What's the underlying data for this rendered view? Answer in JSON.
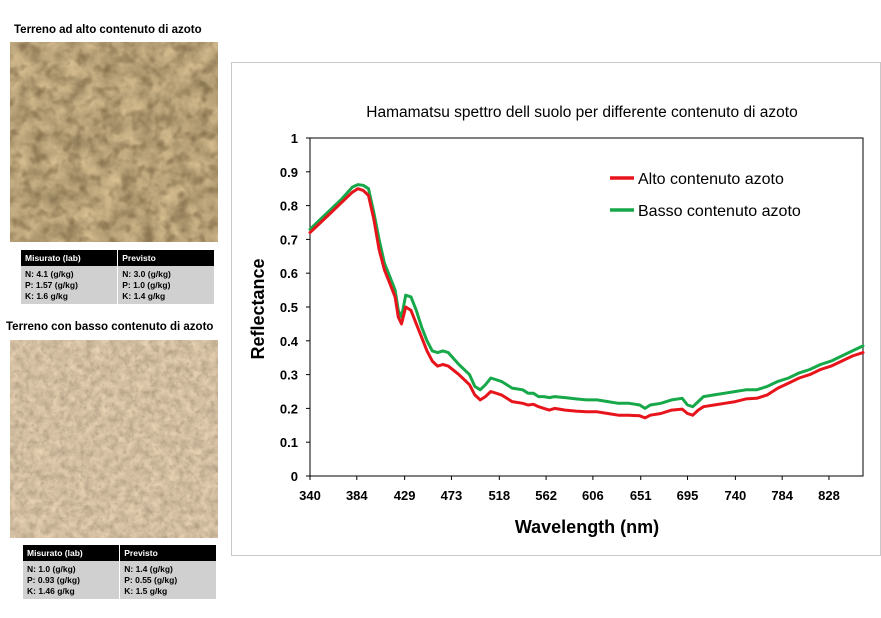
{
  "panels": {
    "high": {
      "title": "Terreno ad alto contenuto di azoto",
      "table": {
        "headers": [
          "Misurato (lab)",
          "Previsto"
        ],
        "measured": [
          "N: 4.1 (g/kg)",
          "P: 1.57 (g/kg)",
          "K: 1.6 g/kg"
        ],
        "predicted": [
          "N: 3.0 (g/kg)",
          "P: 1.0 (g/kg)",
          "K: 1.4 g/kg"
        ]
      }
    },
    "low": {
      "title": "Terreno con basso contenuto di azoto",
      "table": {
        "headers": [
          "Misurato (lab)",
          "Previsto"
        ],
        "measured": [
          "N: 1.0 (g/kg)",
          "P: 0.93 (g/kg)",
          "K: 1.46 g/kg"
        ],
        "predicted": [
          "N: 1.4 (g/kg)",
          "P: 0.55 (g/kg)",
          "K: 1.5 g/kg"
        ]
      }
    }
  },
  "chart_data": {
    "type": "line",
    "title": "Hamamatsu spettro dell suolo per differente contenuto di azoto",
    "xlabel": "Wavelength (nm)",
    "ylabel": "Reflectance",
    "xlim": [
      340,
      860
    ],
    "ylim": [
      0,
      1
    ],
    "x_ticks": [
      340,
      384,
      429,
      473,
      518,
      562,
      606,
      651,
      695,
      740,
      784,
      828
    ],
    "y_ticks": [
      0,
      0.1,
      0.2,
      0.3,
      0.4,
      0.5,
      0.6,
      0.7,
      0.8,
      0.9,
      1
    ],
    "y_tick_labels": [
      "0",
      "0.1",
      "0.2",
      "0.3",
      "0.4",
      "0.5",
      "0.6",
      "0.7",
      "0.8",
      "0.9",
      "1"
    ],
    "grid": false,
    "legend_position": "top-right",
    "series": [
      {
        "name": "Alto contenuto azoto",
        "color": "#e8141c",
        "x": [
          340,
          350,
          360,
          370,
          380,
          385,
          390,
          395,
          400,
          405,
          410,
          415,
          420,
          423,
          426,
          430,
          435,
          440,
          445,
          450,
          455,
          460,
          465,
          470,
          480,
          490,
          495,
          500,
          505,
          510,
          520,
          530,
          540,
          545,
          550,
          555,
          560,
          565,
          570,
          580,
          590,
          600,
          610,
          620,
          630,
          640,
          650,
          655,
          660,
          670,
          680,
          690,
          695,
          700,
          705,
          710,
          720,
          730,
          740,
          750,
          760,
          770,
          780,
          790,
          800,
          810,
          820,
          830,
          840,
          850,
          860
        ],
        "y": [
          0.72,
          0.75,
          0.78,
          0.81,
          0.84,
          0.85,
          0.845,
          0.83,
          0.76,
          0.67,
          0.61,
          0.57,
          0.53,
          0.47,
          0.45,
          0.5,
          0.49,
          0.45,
          0.41,
          0.37,
          0.34,
          0.325,
          0.33,
          0.325,
          0.3,
          0.27,
          0.24,
          0.225,
          0.235,
          0.25,
          0.24,
          0.22,
          0.215,
          0.21,
          0.212,
          0.205,
          0.2,
          0.195,
          0.2,
          0.195,
          0.192,
          0.19,
          0.19,
          0.185,
          0.18,
          0.18,
          0.178,
          0.172,
          0.18,
          0.185,
          0.195,
          0.198,
          0.185,
          0.18,
          0.195,
          0.205,
          0.21,
          0.215,
          0.22,
          0.228,
          0.23,
          0.24,
          0.26,
          0.275,
          0.29,
          0.3,
          0.315,
          0.325,
          0.34,
          0.355,
          0.365
        ]
      },
      {
        "name": "Basso contenuto azoto",
        "color": "#17a84a",
        "x": [
          340,
          350,
          360,
          370,
          380,
          385,
          390,
          395,
          400,
          405,
          410,
          415,
          420,
          423,
          426,
          430,
          435,
          440,
          445,
          450,
          455,
          460,
          465,
          470,
          480,
          490,
          495,
          500,
          505,
          510,
          520,
          530,
          540,
          545,
          550,
          555,
          560,
          565,
          570,
          580,
          590,
          600,
          610,
          620,
          630,
          640,
          650,
          655,
          660,
          670,
          680,
          690,
          695,
          700,
          705,
          710,
          720,
          730,
          740,
          750,
          760,
          770,
          780,
          790,
          800,
          810,
          820,
          830,
          840,
          850,
          860
        ],
        "y": [
          0.73,
          0.76,
          0.79,
          0.82,
          0.855,
          0.862,
          0.86,
          0.85,
          0.78,
          0.7,
          0.63,
          0.59,
          0.55,
          0.49,
          0.47,
          0.535,
          0.53,
          0.49,
          0.44,
          0.4,
          0.37,
          0.365,
          0.37,
          0.365,
          0.33,
          0.3,
          0.265,
          0.255,
          0.27,
          0.29,
          0.28,
          0.26,
          0.255,
          0.245,
          0.245,
          0.235,
          0.235,
          0.232,
          0.235,
          0.232,
          0.228,
          0.225,
          0.225,
          0.22,
          0.215,
          0.215,
          0.21,
          0.2,
          0.21,
          0.215,
          0.225,
          0.23,
          0.21,
          0.205,
          0.22,
          0.235,
          0.24,
          0.245,
          0.25,
          0.255,
          0.255,
          0.265,
          0.28,
          0.29,
          0.305,
          0.315,
          0.33,
          0.34,
          0.355,
          0.37,
          0.385
        ]
      }
    ]
  }
}
